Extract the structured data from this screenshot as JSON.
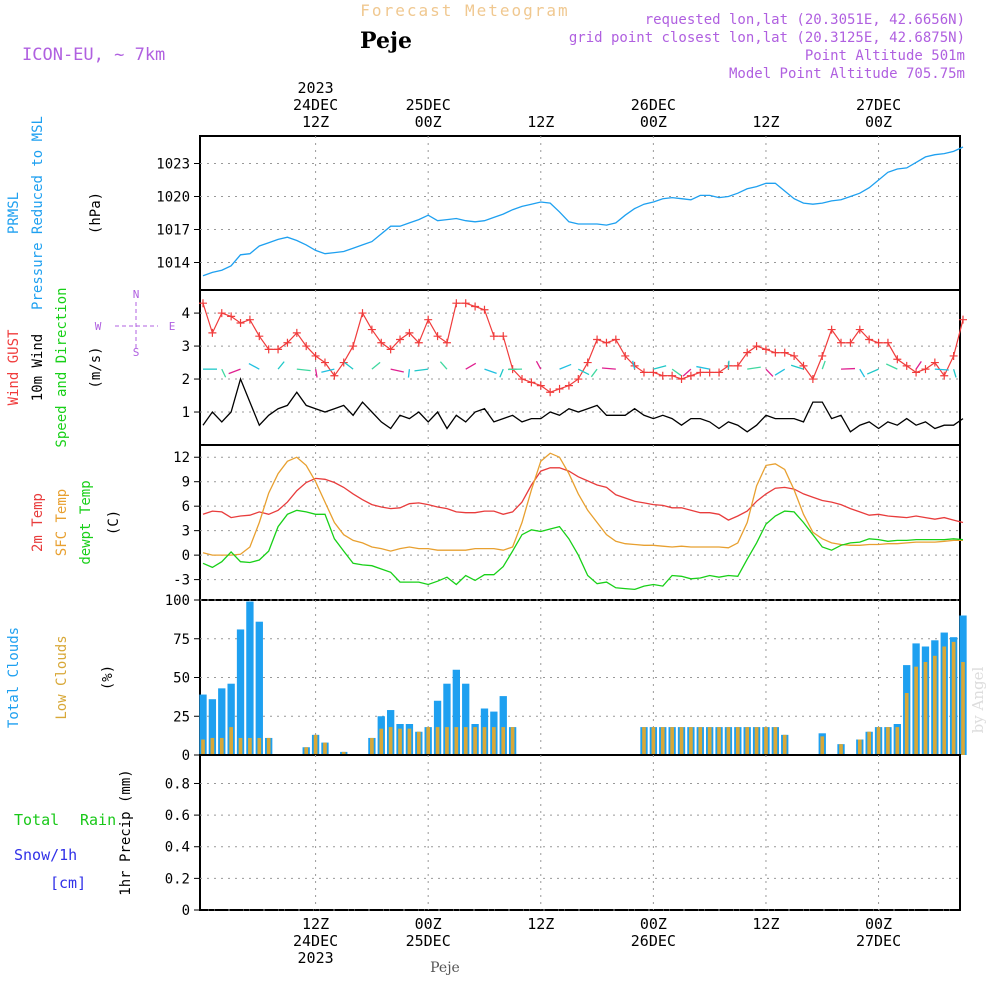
{
  "header": {
    "title": "Forecast Meteogram",
    "station": "Peje",
    "model": "ICON-EU, ~ 7km",
    "requested": "requested lon,lat (20.3051E, 42.6656N)",
    "grid_point": "grid point closest lon,lat (20.3125E, 42.6875N)",
    "point_altitude": "Point Altitude 501m",
    "model_altitude": "Model Point Altitude 705.75m"
  },
  "footer": {
    "station": "Peje",
    "watermark": "by Angel"
  },
  "time_axis": {
    "top": [
      {
        "h": 12,
        "lines": [
          "2023",
          "24DEC",
          "12Z"
        ]
      },
      {
        "h": 24,
        "lines": [
          "25DEC",
          "00Z"
        ]
      },
      {
        "h": 36,
        "lines": [
          "12Z"
        ]
      },
      {
        "h": 48,
        "lines": [
          "26DEC",
          "00Z"
        ]
      },
      {
        "h": 60,
        "lines": [
          "12Z"
        ]
      },
      {
        "h": 72,
        "lines": [
          "27DEC",
          "00Z"
        ]
      }
    ],
    "bottom": [
      {
        "h": 12,
        "lines": [
          "12Z",
          "24DEC",
          "2023"
        ]
      },
      {
        "h": 24,
        "lines": [
          "00Z",
          "25DEC"
        ]
      },
      {
        "h": 36,
        "lines": [
          "12Z"
        ]
      },
      {
        "h": 48,
        "lines": [
          "00Z",
          "26DEC"
        ]
      },
      {
        "h": 60,
        "lines": [
          "12Z"
        ]
      },
      {
        "h": 72,
        "lines": [
          "00Z",
          "27DEC"
        ]
      }
    ]
  },
  "wind_compass": {
    "n": "N",
    "s": "S",
    "e": "E",
    "w": "W"
  },
  "colors": {
    "pressure": "#1ea0f0",
    "gust": "#f03c3c",
    "wind": "#000000",
    "temp2m": "#e83c3c",
    "sfc": "#e8a030",
    "dewpt": "#18d018",
    "total_clouds": "#1ea0f0",
    "low_clouds": "#d8a838",
    "model_text": "#b060e0",
    "rain": "#18c818",
    "snow": "#3030e8",
    "title_text": "#f0c890"
  },
  "chart_data": [
    {
      "type": "line",
      "ylabels": [
        "PRMSL",
        "Pressure Reduced to MSL",
        "(hPa)"
      ],
      "yticks": [
        1014,
        1017,
        1020,
        1023
      ],
      "ylim": [
        1011.5,
        1025.5
      ],
      "grid": true,
      "series": [
        {
          "values": [
            1012.8,
            1013.1,
            1013.3,
            1013.7,
            1014.7,
            1014.8,
            1015.5,
            1015.8,
            1016.1,
            1016.3,
            1016.0,
            1015.6,
            1015.1,
            1014.8,
            1014.9,
            1015.0,
            1015.3,
            1015.6,
            1015.9,
            1016.6,
            1017.3,
            1017.3,
            1017.6,
            1017.9,
            1018.3,
            1017.8,
            1017.9,
            1018.0,
            1017.8,
            1017.7,
            1017.8,
            1018.1,
            1018.4,
            1018.8,
            1019.1,
            1019.3,
            1019.5,
            1019.4,
            1018.6,
            1017.7,
            1017.5,
            1017.5,
            1017.5,
            1017.4,
            1017.6,
            1018.3,
            1018.9,
            1019.3,
            1019.5,
            1019.8,
            1019.9,
            1019.8,
            1019.7,
            1020.1,
            1020.1,
            1019.9,
            1020.0,
            1020.3,
            1020.7,
            1020.9,
            1021.2,
            1021.2,
            1020.5,
            1019.8,
            1019.4,
            1019.3,
            1019.4,
            1019.6,
            1019.7,
            1020.0,
            1020.3,
            1020.8,
            1021.5,
            1022.2,
            1022.5,
            1022.6,
            1023.1,
            1023.6,
            1023.8,
            1023.9,
            1024.1,
            1024.5
          ]
        }
      ]
    },
    {
      "type": "line",
      "ylabels": [
        "Wind GUST",
        "10m Wind",
        "Speed and Direction",
        "(m/s)"
      ],
      "yticks": [
        1,
        2,
        3,
        4
      ],
      "ylim": [
        0,
        4.7
      ],
      "grid": true,
      "series": [
        {
          "name": "Wind GUST",
          "values": [
            4.3,
            3.4,
            4.0,
            3.9,
            3.7,
            3.8,
            3.3,
            2.9,
            2.9,
            3.1,
            3.4,
            3.0,
            2.7,
            2.5,
            2.1,
            2.5,
            3.0,
            4.0,
            3.5,
            3.1,
            2.9,
            3.2,
            3.4,
            3.1,
            3.8,
            3.3,
            3.1,
            4.3,
            4.3,
            4.2,
            4.1,
            3.3,
            3.3,
            2.3,
            2.0,
            1.9,
            1.8,
            1.6,
            1.7,
            1.8,
            2.0,
            2.5,
            3.2,
            3.1,
            3.2,
            2.7,
            2.4,
            2.2,
            2.2,
            2.1,
            2.1,
            2.0,
            2.1,
            2.2,
            2.2,
            2.2,
            2.4,
            2.4,
            2.8,
            3.0,
            2.9,
            2.8,
            2.8,
            2.7,
            2.4,
            2.0,
            2.7,
            3.5,
            3.1,
            3.1,
            3.5,
            3.2,
            3.1,
            3.1,
            2.6,
            2.4,
            2.2,
            2.3,
            2.5,
            2.1,
            2.7,
            3.8
          ]
        },
        {
          "name": "10m Wind",
          "values": [
            0.6,
            1.0,
            0.7,
            1.0,
            2.0,
            1.3,
            0.6,
            0.9,
            1.1,
            1.2,
            1.6,
            1.2,
            1.1,
            1.0,
            1.1,
            1.2,
            0.9,
            1.3,
            1.0,
            0.7,
            0.5,
            0.9,
            0.8,
            1.0,
            0.7,
            1.0,
            0.5,
            0.9,
            0.7,
            1.0,
            1.1,
            0.7,
            0.8,
            0.9,
            0.7,
            0.8,
            0.8,
            1.0,
            0.9,
            1.1,
            1.0,
            1.1,
            1.2,
            0.9,
            0.9,
            0.9,
            1.1,
            0.9,
            0.8,
            0.9,
            0.8,
            0.6,
            0.8,
            0.8,
            0.7,
            0.5,
            0.7,
            0.6,
            0.4,
            0.6,
            0.9,
            0.8,
            0.8,
            0.8,
            0.7,
            1.3,
            1.3,
            0.8,
            0.9,
            0.4,
            0.6,
            0.7,
            0.5,
            0.7,
            0.6,
            0.8,
            0.6,
            0.7,
            0.5,
            0.6,
            0.6,
            0.8
          ]
        }
      ]
    },
    {
      "type": "line",
      "ylabels": [
        "2m Temp",
        "SFC Temp",
        "dewpt Temp",
        "(C)"
      ],
      "yticks": [
        -3,
        0,
        3,
        6,
        9,
        12
      ],
      "ylim": [
        -5.5,
        13.5
      ],
      "grid": true,
      "series": [
        {
          "name": "2m Temp",
          "values": [
            5.0,
            5.4,
            5.3,
            4.6,
            4.8,
            4.9,
            5.3,
            5.0,
            5.5,
            6.5,
            7.9,
            8.9,
            9.4,
            9.3,
            8.9,
            8.3,
            7.5,
            6.8,
            6.2,
            5.9,
            5.7,
            5.8,
            6.3,
            6.4,
            6.2,
            5.9,
            5.7,
            5.3,
            5.2,
            5.2,
            5.4,
            5.4,
            5.0,
            5.3,
            6.5,
            8.6,
            10.3,
            10.7,
            10.7,
            10.3,
            9.6,
            9.1,
            8.6,
            8.3,
            7.4,
            7.0,
            6.6,
            6.4,
            6.2,
            6.1,
            5.8,
            5.8,
            5.5,
            5.2,
            5.2,
            5.0,
            4.3,
            4.8,
            5.4,
            6.6,
            7.5,
            8.2,
            8.3,
            8.1,
            7.5,
            7.1,
            6.7,
            6.5,
            6.2,
            5.7,
            5.3,
            4.9,
            5.0,
            4.8,
            4.7,
            4.6,
            4.8,
            4.6,
            4.4,
            4.6,
            4.3,
            4.0
          ]
        },
        {
          "name": "SFC Temp",
          "values": [
            0.3,
            0.0,
            0.0,
            0.0,
            0.1,
            1.0,
            4.0,
            7.6,
            10.0,
            11.5,
            12.0,
            11.0,
            9.0,
            6.5,
            4.0,
            2.5,
            1.8,
            1.5,
            1.0,
            0.8,
            0.5,
            0.8,
            1.0,
            0.8,
            0.8,
            0.6,
            0.6,
            0.6,
            0.6,
            0.8,
            0.8,
            0.8,
            0.6,
            1.0,
            4.0,
            8.0,
            11.5,
            12.5,
            12.0,
            10.0,
            7.5,
            5.5,
            4.0,
            2.5,
            1.7,
            1.4,
            1.3,
            1.2,
            1.2,
            1.1,
            1.0,
            1.1,
            1.0,
            1.0,
            1.0,
            1.0,
            0.9,
            1.5,
            4.0,
            8.5,
            11.0,
            11.2,
            10.5,
            8.0,
            5.0,
            2.8,
            2.0,
            1.5,
            1.3,
            1.2,
            1.2,
            1.3,
            1.3,
            1.4,
            1.4,
            1.5,
            1.6,
            1.6,
            1.6,
            1.7,
            1.8,
            1.8
          ]
        },
        {
          "name": "dewpt Temp",
          "values": [
            -1.0,
            -1.5,
            -0.8,
            0.4,
            -0.8,
            -0.9,
            -0.6,
            0.5,
            3.5,
            5.0,
            5.5,
            5.3,
            5.0,
            5.0,
            2.0,
            0.5,
            -1.0,
            -1.2,
            -1.3,
            -1.7,
            -2.1,
            -3.3,
            -3.3,
            -3.3,
            -3.6,
            -3.2,
            -2.7,
            -3.6,
            -2.5,
            -3.1,
            -2.4,
            -2.4,
            -1.4,
            0.5,
            2.5,
            3.1,
            2.9,
            3.2,
            3.5,
            2.0,
            0.0,
            -2.5,
            -3.5,
            -3.3,
            -4.0,
            -4.1,
            -4.2,
            -3.8,
            -3.6,
            -3.8,
            -2.5,
            -2.6,
            -2.9,
            -2.8,
            -2.5,
            -2.7,
            -2.5,
            -2.6,
            -0.5,
            1.5,
            3.8,
            4.8,
            5.4,
            5.3,
            4.0,
            2.5,
            1.0,
            0.6,
            1.2,
            1.5,
            1.6,
            2.0,
            1.9,
            1.7,
            1.8,
            1.8,
            1.9,
            1.9,
            1.9,
            1.9,
            2.0,
            1.9
          ]
        }
      ]
    },
    {
      "type": "bar",
      "ylabels": [
        "Total Clouds",
        "Low Clouds",
        "(%)"
      ],
      "yticks": [
        0,
        25,
        50,
        75,
        100
      ],
      "ylim": [
        0,
        100
      ],
      "grid": true,
      "series": [
        {
          "name": "Total Clouds",
          "values": [
            39,
            36,
            43,
            46,
            81,
            99,
            86,
            11,
            0,
            0,
            0,
            5,
            13,
            8,
            0,
            2,
            0,
            0,
            11,
            25,
            29,
            20,
            20,
            15,
            18,
            35,
            46,
            55,
            46,
            20,
            30,
            28,
            38,
            18,
            0,
            0,
            0,
            0,
            0,
            0,
            0,
            0,
            0,
            0,
            0,
            0,
            0,
            18,
            18,
            18,
            18,
            18,
            18,
            18,
            18,
            18,
            18,
            18,
            18,
            18,
            18,
            18,
            13,
            0,
            0,
            0,
            14,
            0,
            7,
            0,
            10,
            15,
            18,
            18,
            20,
            58,
            72,
            70,
            74,
            79,
            76,
            90
          ]
        },
        {
          "name": "Low Clouds",
          "values": [
            10,
            11,
            11,
            18,
            11,
            11,
            11,
            11,
            0,
            0,
            0,
            5,
            13,
            8,
            0,
            2,
            0,
            0,
            11,
            17,
            18,
            17,
            17,
            15,
            18,
            18,
            18,
            18,
            18,
            18,
            18,
            18,
            18,
            18,
            0,
            0,
            0,
            0,
            0,
            0,
            0,
            0,
            0,
            0,
            0,
            0,
            0,
            18,
            18,
            18,
            18,
            18,
            18,
            18,
            18,
            18,
            18,
            18,
            18,
            18,
            18,
            18,
            13,
            0,
            0,
            0,
            12,
            0,
            7,
            0,
            10,
            15,
            18,
            18,
            18,
            40,
            57,
            60,
            64,
            70,
            73,
            60
          ]
        }
      ]
    },
    {
      "type": "line",
      "ylabels": [
        "1hr Precip (mm)"
      ],
      "side_labels": [
        "Total",
        "Rain",
        "Snow/1h",
        "[cm]"
      ],
      "yticks": [
        0,
        0.2,
        0.4,
        0.6,
        0.8
      ],
      "ylim": [
        0,
        0.98
      ],
      "grid": true,
      "series": [
        {
          "name": "Total Rain",
          "values": [
            0,
            0,
            0,
            0,
            0,
            0,
            0,
            0,
            0,
            0,
            0,
            0,
            0,
            0,
            0,
            0,
            0,
            0,
            0,
            0,
            0,
            0,
            0,
            0,
            0,
            0,
            0,
            0,
            0,
            0,
            0,
            0,
            0,
            0,
            0,
            0,
            0,
            0,
            0,
            0,
            0,
            0,
            0,
            0,
            0,
            0,
            0,
            0,
            0,
            0,
            0,
            0,
            0,
            0,
            0,
            0,
            0,
            0,
            0,
            0,
            0,
            0,
            0,
            0,
            0,
            0,
            0,
            0,
            0,
            0,
            0,
            0,
            0,
            0,
            0,
            0,
            0,
            0,
            0,
            0,
            0,
            0
          ]
        }
      ]
    }
  ]
}
